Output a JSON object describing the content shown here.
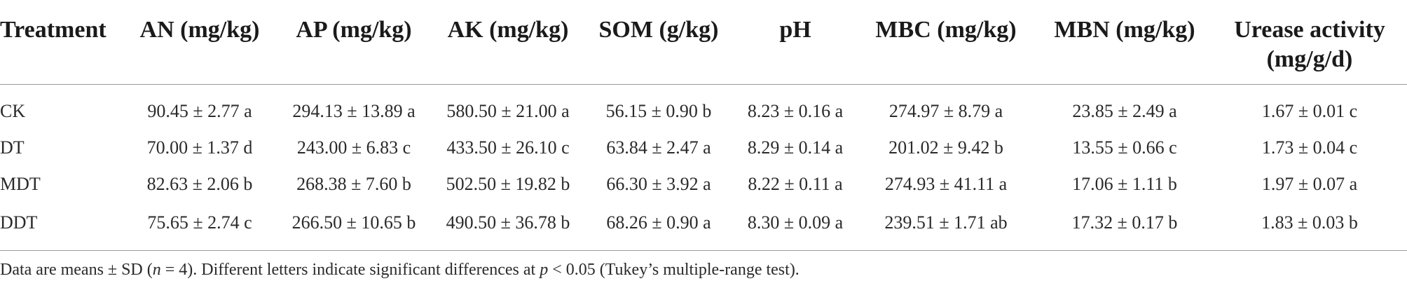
{
  "table": {
    "headers": [
      "Treatment",
      "AN (mg/kg)",
      "AP (mg/kg)",
      "AK (mg/kg)",
      "SOM (g/kg)",
      "pH",
      "MBC (mg/kg)",
      "MBN (mg/kg)",
      "Urease activity (mg/g/d)"
    ],
    "rows": [
      [
        "CK",
        "90.45 ± 2.77 a",
        "294.13 ± 13.89 a",
        "580.50 ± 21.00 a",
        "56.15 ± 0.90 b",
        "8.23 ± 0.16 a",
        "274.97 ± 8.79 a",
        "23.85 ± 2.49 a",
        "1.67 ± 0.01 c"
      ],
      [
        "DT",
        "70.00 ± 1.37 d",
        "243.00 ± 6.83 c",
        "433.50 ± 26.10 c",
        "63.84 ± 2.47 a",
        "8.29 ± 0.14 a",
        "201.02 ± 9.42 b",
        "13.55 ± 0.66 c",
        "1.73 ± 0.04 c"
      ],
      [
        "MDT",
        "82.63 ± 2.06 b",
        "268.38 ± 7.60 b",
        "502.50 ± 19.82 b",
        "66.30 ± 3.92 a",
        "8.22 ± 0.11 a",
        "274.93 ± 41.11 a",
        "17.06 ± 1.11 b",
        "1.97 ± 0.07 a"
      ],
      [
        "DDT",
        "75.65 ± 2.74 c",
        "266.50 ± 10.65 b",
        "490.50 ± 36.78 b",
        "68.26 ± 0.90 a",
        "8.30 ± 0.09 a",
        "239.51 ± 1.71 ab",
        "17.32 ± 0.17 b",
        "1.83 ± 0.03 b"
      ]
    ]
  },
  "footnote": {
    "part1": "Data are means ± SD (",
    "n_symbol": "n",
    "part2": " = 4). Different letters indicate significant differences at ",
    "p_symbol": "p",
    "part3": " < 0.05 (Tukey’s multiple-range test)."
  }
}
